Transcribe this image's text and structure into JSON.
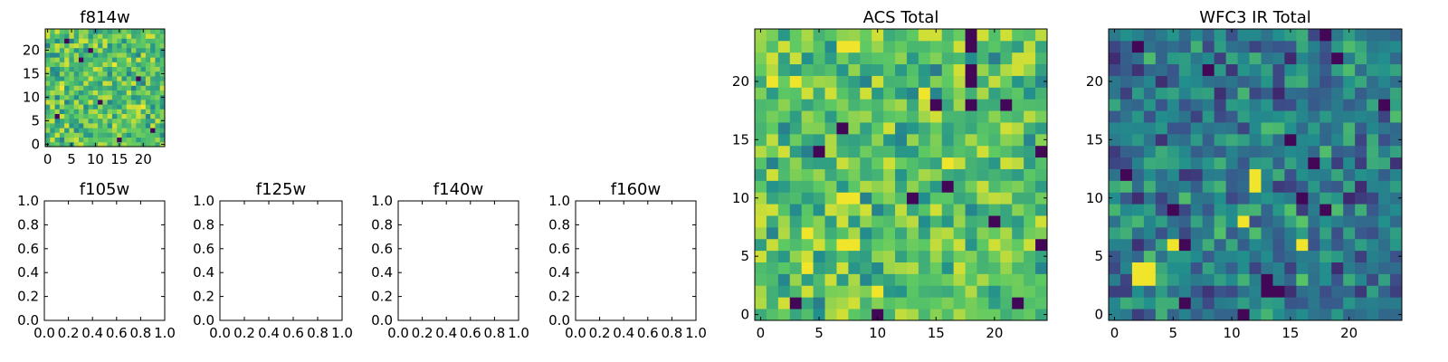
{
  "colormap": [
    "#440154",
    "#3b528b",
    "#21908d",
    "#5dc963",
    "#fde725"
  ],
  "chart_data": [
    {
      "type": "heatmap",
      "title": "f814w",
      "grid_size": 25,
      "xlim": [
        -0.5,
        24.5
      ],
      "ylim": [
        -0.5,
        24.5
      ],
      "x_ticks": [
        0,
        5,
        10,
        15,
        20
      ],
      "y_ticks": [
        0,
        5,
        10,
        15,
        20
      ],
      "x_tick_labels": [
        "0",
        "5",
        "10",
        "15",
        "20"
      ],
      "y_tick_labels": [
        "0",
        "5",
        "10",
        "15",
        "20"
      ],
      "value_range": [
        0,
        1
      ],
      "palette_bias": 0.72,
      "seed": 814,
      "dark_cells": [
        [
          4,
          22
        ],
        [
          7,
          18
        ],
        [
          19,
          14
        ],
        [
          11,
          9
        ],
        [
          2,
          6
        ],
        [
          22,
          3
        ],
        [
          15,
          1
        ],
        [
          9,
          20
        ]
      ],
      "bright_cells": [
        [
          3,
          12
        ],
        [
          14,
          17
        ],
        [
          20,
          8
        ]
      ]
    },
    {
      "type": "heatmap",
      "title": "f105w",
      "empty": true,
      "xlim": [
        0,
        1
      ],
      "ylim": [
        0,
        1
      ],
      "x_ticks": [
        0,
        0.2,
        0.4,
        0.6,
        0.8,
        1.0
      ],
      "y_ticks": [
        0,
        0.2,
        0.4,
        0.6,
        0.8,
        1.0
      ],
      "x_tick_labels": [
        "0.0",
        "0.2",
        "0.4",
        "0.6",
        "0.8",
        "1.0"
      ],
      "y_tick_labels": [
        "0.0",
        "0.2",
        "0.4",
        "0.6",
        "0.8",
        "1.0"
      ]
    },
    {
      "type": "heatmap",
      "title": "f125w",
      "empty": true,
      "xlim": [
        0,
        1
      ],
      "ylim": [
        0,
        1
      ],
      "x_ticks": [
        0,
        0.2,
        0.4,
        0.6,
        0.8,
        1.0
      ],
      "y_ticks": [
        0,
        0.2,
        0.4,
        0.6,
        0.8,
        1.0
      ],
      "x_tick_labels": [
        "0.0",
        "0.2",
        "0.4",
        "0.6",
        "0.8",
        "1.0"
      ],
      "y_tick_labels": [
        "0.0",
        "0.2",
        "0.4",
        "0.6",
        "0.8",
        "1.0"
      ]
    },
    {
      "type": "heatmap",
      "title": "f140w",
      "empty": true,
      "xlim": [
        0,
        1
      ],
      "ylim": [
        0,
        1
      ],
      "x_ticks": [
        0,
        0.2,
        0.4,
        0.6,
        0.8,
        1.0
      ],
      "y_ticks": [
        0,
        0.2,
        0.4,
        0.6,
        0.8,
        1.0
      ],
      "x_tick_labels": [
        "0.0",
        "0.2",
        "0.4",
        "0.6",
        "0.8",
        "1.0"
      ],
      "y_tick_labels": [
        "0.0",
        "0.2",
        "0.4",
        "0.6",
        "0.8",
        "1.0"
      ]
    },
    {
      "type": "heatmap",
      "title": "f160w",
      "empty": true,
      "xlim": [
        0,
        1
      ],
      "ylim": [
        0,
        1
      ],
      "x_ticks": [
        0,
        0.2,
        0.4,
        0.6,
        0.8,
        1.0
      ],
      "y_ticks": [
        0,
        0.2,
        0.4,
        0.6,
        0.8,
        1.0
      ],
      "x_tick_labels": [
        "0.0",
        "0.2",
        "0.4",
        "0.6",
        "0.8",
        "1.0"
      ],
      "y_tick_labels": [
        "0.0",
        "0.2",
        "0.4",
        "0.6",
        "0.8",
        "1.0"
      ]
    },
    {
      "type": "heatmap",
      "title": "ACS Total",
      "grid_size": 25,
      "xlim": [
        -0.5,
        24.5
      ],
      "ylim": [
        -0.5,
        24.5
      ],
      "x_ticks": [
        0,
        5,
        10,
        15,
        20
      ],
      "y_ticks": [
        0,
        5,
        10,
        15,
        20
      ],
      "x_tick_labels": [
        "0",
        "5",
        "10",
        "15",
        "20"
      ],
      "y_tick_labels": [
        "0",
        "5",
        "10",
        "15",
        "20"
      ],
      "value_range": [
        0,
        1
      ],
      "palette_bias": 0.72,
      "seed": 814,
      "dark_cells": [
        [
          18,
          24
        ],
        [
          18,
          23
        ],
        [
          18,
          21
        ],
        [
          18,
          20
        ],
        [
          7,
          16
        ],
        [
          5,
          14
        ],
        [
          16,
          11
        ],
        [
          13,
          10
        ],
        [
          10,
          0
        ],
        [
          20,
          8
        ],
        [
          18,
          18
        ],
        [
          21,
          18
        ],
        [
          15,
          18
        ],
        [
          24,
          14
        ],
        [
          24,
          6
        ],
        [
          3,
          1
        ],
        [
          22,
          1
        ]
      ],
      "bright_cells": [
        [
          7,
          23
        ],
        [
          8,
          23
        ],
        [
          1,
          20
        ],
        [
          3,
          20
        ],
        [
          14,
          19
        ],
        [
          7,
          10
        ],
        [
          8,
          10
        ],
        [
          4,
          7
        ],
        [
          8,
          6
        ],
        [
          7,
          6
        ],
        [
          4,
          4
        ],
        [
          10,
          2
        ],
        [
          16,
          13
        ]
      ]
    },
    {
      "type": "heatmap",
      "title": "WFC3 IR Total",
      "grid_size": 25,
      "xlim": [
        -0.5,
        24.5
      ],
      "ylim": [
        -0.5,
        24.5
      ],
      "x_ticks": [
        0,
        5,
        10,
        15,
        20
      ],
      "y_ticks": [
        0,
        5,
        10,
        15,
        20
      ],
      "x_tick_labels": [
        "0",
        "5",
        "10",
        "15",
        "20"
      ],
      "y_tick_labels": [
        "0",
        "5",
        "10",
        "15",
        "20"
      ],
      "value_range": [
        0,
        1
      ],
      "palette_bias": 0.42,
      "seed": 160,
      "dark_cells": [
        [
          2,
          23
        ],
        [
          18,
          24
        ],
        [
          8,
          21
        ],
        [
          15,
          15
        ],
        [
          17,
          13
        ],
        [
          1,
          12
        ],
        [
          16,
          10
        ],
        [
          18,
          9
        ],
        [
          5,
          9
        ],
        [
          6,
          6
        ],
        [
          13,
          3
        ],
        [
          13,
          2
        ],
        [
          14,
          2
        ],
        [
          6,
          1
        ],
        [
          11,
          0
        ],
        [
          19,
          22
        ],
        [
          23,
          18
        ]
      ],
      "bright_cells": [
        [
          2,
          4
        ],
        [
          3,
          4
        ],
        [
          2,
          3
        ],
        [
          3,
          3
        ],
        [
          5,
          6
        ],
        [
          6,
          6
        ],
        [
          12,
          12
        ],
        [
          12,
          11
        ],
        [
          11,
          8
        ],
        [
          16,
          6
        ]
      ]
    }
  ]
}
